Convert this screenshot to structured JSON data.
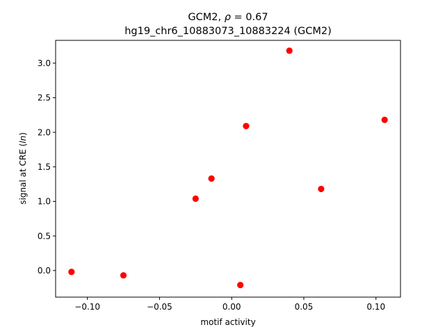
{
  "chart_data": {
    "type": "scatter",
    "title_line1": "GCM2, ρ = 0.67",
    "title_line2": "hg19_chr6_10883073_10883224 (GCM2)",
    "xlabel": "motif activity",
    "ylabel": "signal at CRE (ln)",
    "xlim": [
      -0.122,
      0.117
    ],
    "ylim": [
      -0.385,
      3.33
    ],
    "xticks": [
      -0.1,
      -0.05,
      0.0,
      0.05,
      0.1
    ],
    "xtick_labels": [
      "−0.10",
      "−0.05",
      "0.00",
      "0.05",
      "0.10"
    ],
    "yticks": [
      0.0,
      0.5,
      1.0,
      1.5,
      2.0,
      2.5,
      3.0
    ],
    "ytick_labels": [
      "0.0",
      "0.5",
      "1.0",
      "1.5",
      "2.0",
      "2.5",
      "3.0"
    ],
    "grid": false,
    "point_color": "#ff0000",
    "points": [
      {
        "x": -0.111,
        "y": -0.02
      },
      {
        "x": -0.075,
        "y": -0.07
      },
      {
        "x": -0.025,
        "y": 1.04
      },
      {
        "x": -0.014,
        "y": 1.33
      },
      {
        "x": 0.006,
        "y": -0.21
      },
      {
        "x": 0.01,
        "y": 2.09
      },
      {
        "x": 0.04,
        "y": 3.18
      },
      {
        "x": 0.062,
        "y": 1.18
      },
      {
        "x": 0.106,
        "y": 2.18
      }
    ]
  }
}
